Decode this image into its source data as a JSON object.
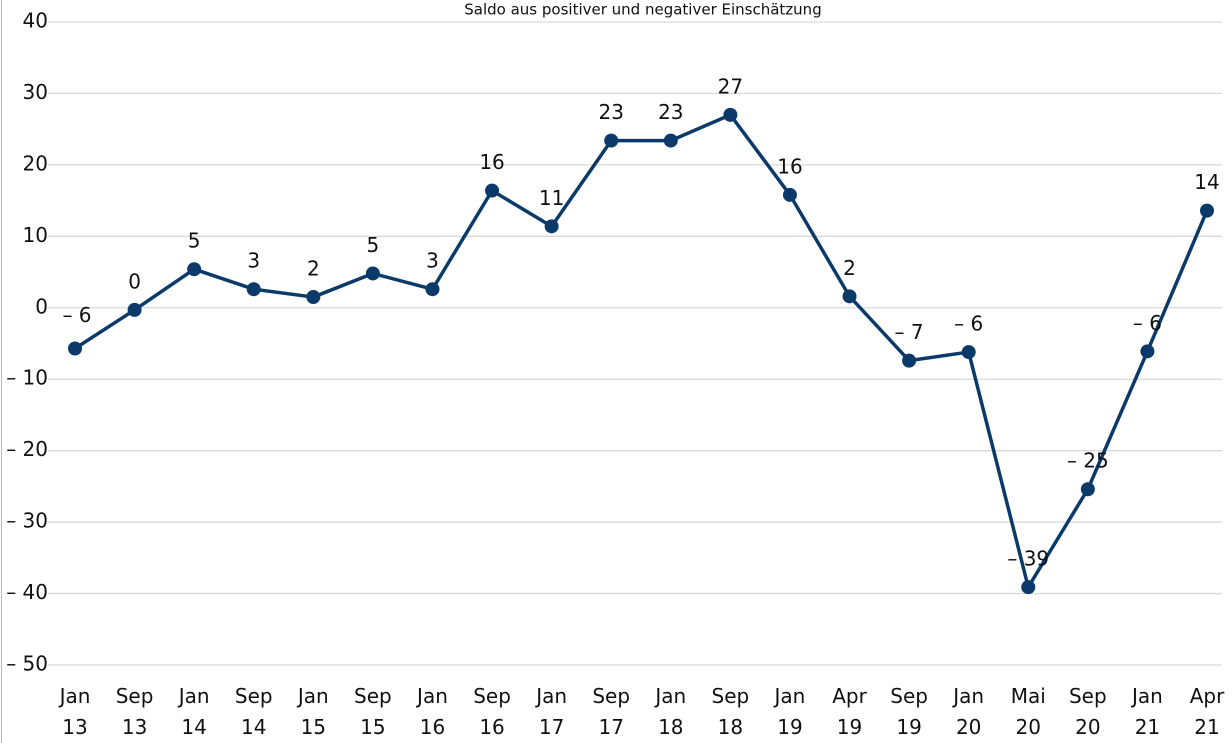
{
  "chart_data": {
    "type": "line",
    "subtitle": "Saldo aus positiver und negativer Einschätzung",
    "categories": [
      [
        "Jan",
        "13"
      ],
      [
        "Sep",
        "13"
      ],
      [
        "Jan",
        "14"
      ],
      [
        "Sep",
        "14"
      ],
      [
        "Jan",
        "15"
      ],
      [
        "Sep",
        "15"
      ],
      [
        "Jan",
        "16"
      ],
      [
        "Sep",
        "16"
      ],
      [
        "Jan",
        "17"
      ],
      [
        "Sep",
        "17"
      ],
      [
        "Jan",
        "18"
      ],
      [
        "Sep",
        "18"
      ],
      [
        "Jan",
        "19"
      ],
      [
        "Apr",
        "19"
      ],
      [
        "Sep",
        "19"
      ],
      [
        "Jan",
        "20"
      ],
      [
        "Mai",
        "20"
      ],
      [
        "Sep",
        "20"
      ],
      [
        "Jan",
        "21"
      ],
      [
        "Apr",
        "21"
      ]
    ],
    "values": [
      -5.7,
      -0.3,
      5.4,
      2.6,
      1.5,
      4.8,
      2.6,
      16.4,
      11.4,
      23.4,
      23.4,
      27,
      15.8,
      1.6,
      -7.4,
      -6.2,
      -39.1,
      -25.4,
      -6.1,
      13.6
    ],
    "value_labels": [
      "– 6",
      "0",
      "5",
      "3",
      "2",
      "5",
      "3",
      "16",
      "11",
      "23",
      "23",
      "27",
      "16",
      "2",
      "– 7",
      "– 6",
      "– 39",
      "– 25",
      "– 6",
      "14"
    ],
    "color": "#0b3a6a",
    "ylim": [
      -50,
      40
    ],
    "yticks": [
      {
        "value": -50,
        "label": "– 50"
      },
      {
        "value": -40,
        "label": "– 40"
      },
      {
        "value": -30,
        "label": "– 30"
      },
      {
        "value": -20,
        "label": "– 20"
      },
      {
        "value": -10,
        "label": "– 10"
      },
      0,
      10,
      20,
      30,
      40
    ],
    "grid": true
  }
}
